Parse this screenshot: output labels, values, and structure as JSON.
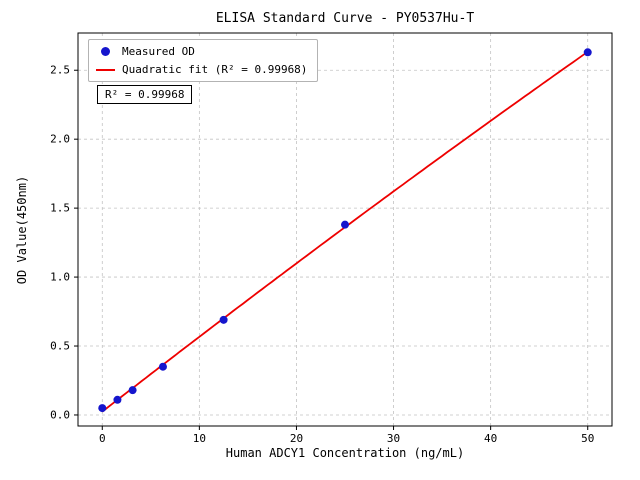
{
  "figure": {
    "background": "#ffffff"
  },
  "annotation": "R² = 0.99968",
  "legend": {
    "measured_label": "Measured OD",
    "fit_label": "Quadratic fit (R² = 0.99968)"
  },
  "chart_data": {
    "type": "scatter",
    "title": "ELISA Standard Curve - PY0537Hu-T",
    "xlabel": "Human ADCY1 Concentration (ng/mL)",
    "ylabel": "OD Value(450nm)",
    "series": [
      {
        "name": "Measured OD",
        "type": "scatter",
        "color": "#1515cd",
        "x": [
          0,
          1.5625,
          3.125,
          6.25,
          12.5,
          25,
          50
        ],
        "y": [
          0.05,
          0.11,
          0.18,
          0.35,
          0.69,
          1.38,
          2.63
        ]
      },
      {
        "name": "Quadratic fit (R² = 0.99968)",
        "type": "line",
        "fit": "quadratic",
        "color": "#ee0000",
        "r_squared": 0.99968,
        "x_range": [
          0,
          50
        ]
      }
    ],
    "xticks": {
      "values": [
        0,
        10,
        20,
        30,
        40,
        50
      ],
      "labels": [
        "0",
        "10",
        "20",
        "30",
        "40",
        "50"
      ]
    },
    "yticks": {
      "values": [
        0,
        0.5,
        1,
        1.5,
        2,
        2.5
      ],
      "labels": [
        "0.0",
        "0.5",
        "1.0",
        "1.5",
        "2.0",
        "2.5"
      ]
    },
    "xlim": [
      -2.5,
      52.5
    ],
    "ylim": [
      -0.08,
      2.77
    ],
    "grid": true,
    "grid_style": "dashed",
    "legend_position": "upper left"
  }
}
